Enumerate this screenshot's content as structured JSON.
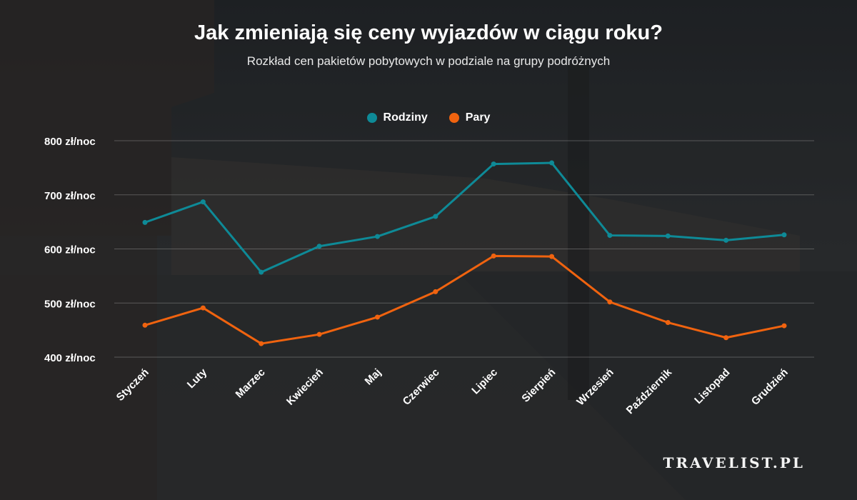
{
  "title": "Jak zmieniają się ceny wyjazdów w ciągu roku?",
  "subtitle": "Rozkład cen pakietów pobytowych w podziale na grupy podróżnych",
  "brand": "TRAVELIST.PL",
  "legend": [
    {
      "label": "Rodziny",
      "color": "#0e8a97"
    },
    {
      "label": "Pary",
      "color": "#f0630f"
    }
  ],
  "chart_data": {
    "type": "line",
    "title": "Jak zmieniają się ceny wyjazdów w ciągu roku?",
    "subtitle": "Rozkład cen pakietów pobytowych w podziale na grupy podróżnych",
    "categories": [
      "Styczeń",
      "Luty",
      "Marzec",
      "Kwiecień",
      "Maj",
      "Czerwiec",
      "Lipiec",
      "Sierpień",
      "Wrzesień",
      "Październik",
      "Listopad",
      "Grudzień"
    ],
    "y_tick_labels": [
      "400 zł/noc",
      "500 zł/noc",
      "600 zł/noc",
      "700 zł/noc",
      "800 zł/noc"
    ],
    "y_ticks": [
      400,
      500,
      600,
      700,
      800
    ],
    "ylim": [
      400,
      800
    ],
    "grid": true,
    "legend_position": "top-center",
    "series": [
      {
        "name": "Rodziny",
        "color": "#0e8a97",
        "values": [
          649,
          687,
          557,
          605,
          623,
          660,
          757,
          759,
          625,
          624,
          616,
          626
        ]
      },
      {
        "name": "Pary",
        "color": "#f0630f",
        "values": [
          459,
          491,
          425,
          442,
          474,
          521,
          587,
          586,
          502,
          464,
          436,
          458
        ]
      }
    ]
  }
}
